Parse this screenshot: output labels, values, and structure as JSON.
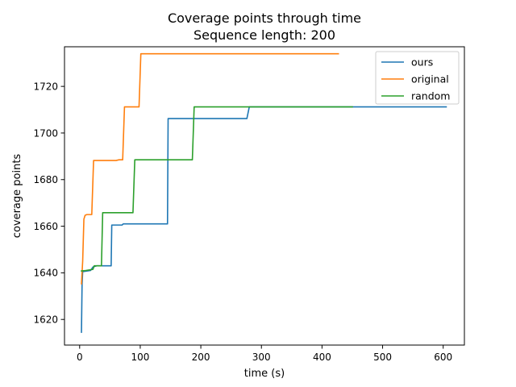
{
  "chart_data": {
    "type": "line",
    "title": [
      "Coverage points through time",
      "Sequence length: 200"
    ],
    "xlabel": "time (s)",
    "ylabel": "coverage points",
    "xlim": [
      -25,
      635
    ],
    "ylim": [
      1609,
      1737
    ],
    "xticks": [
      0,
      100,
      200,
      300,
      400,
      500,
      600
    ],
    "yticks": [
      1620,
      1640,
      1660,
      1680,
      1700,
      1720
    ],
    "grid": false,
    "legend": {
      "placement": "top-right"
    },
    "series": [
      {
        "name": "ours",
        "color": "#1f77b4",
        "points": [
          [
            3,
            1614.5
          ],
          [
            4,
            1635
          ],
          [
            5,
            1640.5
          ],
          [
            18,
            1641
          ],
          [
            22,
            1642.5
          ],
          [
            28,
            1643
          ],
          [
            52,
            1643
          ],
          [
            53,
            1660.5
          ],
          [
            70,
            1660.5
          ],
          [
            72,
            1661
          ],
          [
            145,
            1661
          ],
          [
            146,
            1706.2
          ],
          [
            276,
            1706.2
          ],
          [
            280,
            1711.2
          ],
          [
            605,
            1711.2
          ]
        ]
      },
      {
        "name": "original",
        "color": "#ff7f0e",
        "points": [
          [
            3,
            1635.3
          ],
          [
            5,
            1645
          ],
          [
            7,
            1663
          ],
          [
            9,
            1664.7
          ],
          [
            12,
            1665
          ],
          [
            20,
            1665
          ],
          [
            23,
            1688.2
          ],
          [
            60,
            1688.2
          ],
          [
            65,
            1688.5
          ],
          [
            71,
            1688.5
          ],
          [
            74,
            1711.2
          ],
          [
            98,
            1711.2
          ],
          [
            101,
            1734
          ],
          [
            427,
            1734
          ]
        ]
      },
      {
        "name": "random",
        "color": "#2ca02c",
        "points": [
          [
            3,
            1640.8
          ],
          [
            10,
            1641
          ],
          [
            22,
            1641.5
          ],
          [
            24,
            1643
          ],
          [
            36,
            1643
          ],
          [
            38,
            1665.8
          ],
          [
            88,
            1665.8
          ],
          [
            91,
            1688.5
          ],
          [
            186,
            1688.5
          ],
          [
            189,
            1711.2
          ],
          [
            450,
            1711.2
          ]
        ]
      }
    ]
  }
}
